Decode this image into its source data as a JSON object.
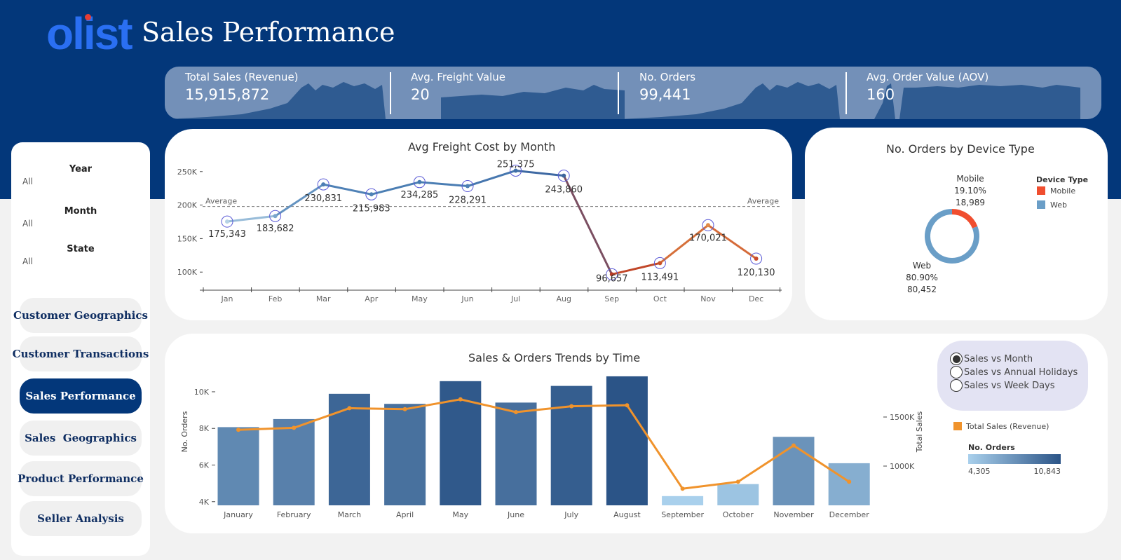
{
  "header": {
    "logo": "olist",
    "title": "Sales Performance"
  },
  "kpis": [
    {
      "label": "Total Sales (Revenue)",
      "value": "15,915,872"
    },
    {
      "label": "Avg. Freight Value",
      "value": "20"
    },
    {
      "label": "No. Orders",
      "value": "99,441"
    },
    {
      "label": "Avg. Order Value (AOV)",
      "value": "160"
    }
  ],
  "filters": [
    {
      "label": "Year",
      "value": "All"
    },
    {
      "label": "Month",
      "value": "All"
    },
    {
      "label": "State",
      "value": "All"
    }
  ],
  "nav": [
    {
      "label": "Customer Geographics",
      "active": false
    },
    {
      "label": "Customer Transactions",
      "active": false
    },
    {
      "label": "Sales Performance",
      "active": true
    },
    {
      "label": "Sales  Geographics",
      "active": false
    },
    {
      "label": "Product Performance",
      "active": false
    },
    {
      "label": "Seller Analysis",
      "active": false
    }
  ],
  "chart_data": [
    {
      "type": "line",
      "title": "Avg Freight Cost by Month",
      "categories": [
        "Jan",
        "Feb",
        "Mar",
        "Apr",
        "May",
        "Jun",
        "Jul",
        "Aug",
        "Sep",
        "Oct",
        "Nov",
        "Dec"
      ],
      "values": [
        175343,
        183682,
        230831,
        215983,
        234285,
        228291,
        251375,
        243860,
        96657,
        113491,
        170021,
        120130
      ],
      "value_labels": [
        "175,343",
        "183,682",
        "230,831",
        "215,983",
        "234,285",
        "228,291",
        "251,375",
        "243,860",
        "96,657",
        "113,491",
        "170,021",
        "120,130"
      ],
      "yticks": [
        "100K",
        "150K",
        "200K",
        "250K"
      ],
      "ytick_values": [
        100000,
        150000,
        200000,
        250000
      ],
      "ylim": [
        95000,
        255000
      ],
      "reference_line": {
        "label": "Average",
        "value": 197833
      }
    },
    {
      "type": "pie",
      "title": "No. Orders by Device Type",
      "legend_title": "Device Type",
      "slices": [
        {
          "name": "Mobile",
          "percent": "19.10%",
          "count": "18,989",
          "value": 18989,
          "color": "#f04e2f"
        },
        {
          "name": "Web",
          "percent": "80.90%",
          "count": "80,452",
          "value": 80452,
          "color": "#6a9ec7"
        }
      ]
    },
    {
      "type": "bar",
      "title": "Sales & Orders Trends by Time",
      "categories": [
        "January",
        "February",
        "March",
        "April",
        "May",
        "June",
        "July",
        "August",
        "September",
        "October",
        "November",
        "December"
      ],
      "series": [
        {
          "name": "No. Orders",
          "values": [
            8070,
            8510,
            9890,
            9340,
            10580,
            9410,
            10320,
            10843,
            4305,
            4960,
            7540,
            6100
          ]
        },
        {
          "name": "Total Sales (Revenue)",
          "values": [
            1370000,
            1390000,
            1590000,
            1580000,
            1680000,
            1550000,
            1610000,
            1620000,
            770000,
            840000,
            1210000,
            840000
          ]
        }
      ],
      "ylabel": "No. Orders",
      "ylabel_right": "Total Sales",
      "yticks": [
        "4K",
        "6K",
        "8K",
        "10K"
      ],
      "ytick_values": [
        4000,
        6000,
        8000,
        10000
      ],
      "ylim": [
        3800,
        11300
      ],
      "yticks_right": [
        "1000K",
        "1500K"
      ],
      "ytick_values_right": [
        1000000,
        1500000
      ],
      "ylim_right": [
        600000,
        2000000
      ],
      "color_legend": {
        "title": "No. Orders",
        "min": "4,305",
        "max": "10,843"
      },
      "line_legend": "Total Sales (Revenue)",
      "line_color": "#f0932c"
    }
  ],
  "view_toggle": [
    {
      "label": "Sales vs Month",
      "selected": true
    },
    {
      "label": "Sales vs Annual Holidays",
      "selected": false
    },
    {
      "label": "Sales vs Week Days",
      "selected": false
    }
  ]
}
